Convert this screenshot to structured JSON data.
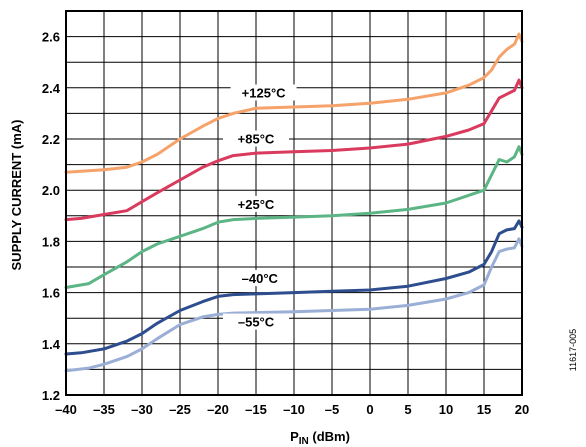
{
  "chart_data": {
    "type": "line",
    "xlabel_main": "P",
    "xlabel_sub": "IN",
    "xlabel_unit": " (dBm)",
    "ylabel": "SUPPLY CURRENT (mA)",
    "xlim": [
      -40,
      20
    ],
    "ylim": [
      1.2,
      2.7
    ],
    "x_ticks": [
      "–40",
      "–35",
      "–30",
      "–25",
      "–20",
      "–15",
      "–10",
      "–5",
      "0",
      "5",
      "10",
      "15",
      "20"
    ],
    "y_ticks": [
      "1.2",
      "1.4",
      "1.6",
      "1.8",
      "2.0",
      "2.2",
      "2.4",
      "2.6"
    ],
    "grid": true,
    "figure_id": "11617-005",
    "series": [
      {
        "name": "+125°C",
        "color": "#f5a36b",
        "label_pos": [
          -14,
          2.37
        ],
        "points": [
          [
            -40,
            2.07
          ],
          [
            -35,
            2.08
          ],
          [
            -32,
            2.09
          ],
          [
            -30,
            2.11
          ],
          [
            -28,
            2.14
          ],
          [
            -25,
            2.2
          ],
          [
            -22,
            2.25
          ],
          [
            -20,
            2.28
          ],
          [
            -18,
            2.3
          ],
          [
            -15,
            2.32
          ],
          [
            -10,
            2.325
          ],
          [
            -5,
            2.33
          ],
          [
            0,
            2.34
          ],
          [
            5,
            2.355
          ],
          [
            10,
            2.38
          ],
          [
            13,
            2.41
          ],
          [
            15,
            2.44
          ],
          [
            16,
            2.47
          ],
          [
            17,
            2.52
          ],
          [
            18,
            2.55
          ],
          [
            19,
            2.57
          ],
          [
            19.6,
            2.61
          ],
          [
            20,
            2.58
          ]
        ]
      },
      {
        "name": "+85°C",
        "color": "#d93a5d",
        "label_pos": [
          -15,
          2.19
        ],
        "points": [
          [
            -40,
            1.885
          ],
          [
            -38,
            1.89
          ],
          [
            -35,
            1.905
          ],
          [
            -32,
            1.92
          ],
          [
            -30,
            1.955
          ],
          [
            -28,
            1.99
          ],
          [
            -25,
            2.04
          ],
          [
            -22,
            2.09
          ],
          [
            -20,
            2.115
          ],
          [
            -18,
            2.135
          ],
          [
            -15,
            2.145
          ],
          [
            -10,
            2.15
          ],
          [
            -5,
            2.155
          ],
          [
            0,
            2.165
          ],
          [
            5,
            2.18
          ],
          [
            10,
            2.21
          ],
          [
            13,
            2.235
          ],
          [
            15,
            2.26
          ],
          [
            16,
            2.31
          ],
          [
            17,
            2.36
          ],
          [
            18,
            2.375
          ],
          [
            19,
            2.39
          ],
          [
            19.6,
            2.43
          ],
          [
            20,
            2.4
          ]
        ]
      },
      {
        "name": "+25°C",
        "color": "#5bb584",
        "label_pos": [
          -15,
          1.935
        ],
        "points": [
          [
            -40,
            1.62
          ],
          [
            -37,
            1.635
          ],
          [
            -35,
            1.67
          ],
          [
            -32,
            1.72
          ],
          [
            -30,
            1.76
          ],
          [
            -28,
            1.79
          ],
          [
            -25,
            1.82
          ],
          [
            -22,
            1.85
          ],
          [
            -20,
            1.875
          ],
          [
            -18,
            1.885
          ],
          [
            -15,
            1.89
          ],
          [
            -10,
            1.895
          ],
          [
            -5,
            1.9
          ],
          [
            0,
            1.91
          ],
          [
            5,
            1.925
          ],
          [
            10,
            1.95
          ],
          [
            13,
            1.98
          ],
          [
            15,
            2.0
          ],
          [
            16,
            2.06
          ],
          [
            17,
            2.12
          ],
          [
            18,
            2.11
          ],
          [
            19,
            2.13
          ],
          [
            19.6,
            2.17
          ],
          [
            20,
            2.14
          ]
        ]
      },
      {
        "name": "–40°C",
        "color": "#2e4d8f",
        "label_pos": [
          -14.5,
          1.645
        ],
        "points": [
          [
            -40,
            1.36
          ],
          [
            -38,
            1.365
          ],
          [
            -35,
            1.38
          ],
          [
            -32,
            1.41
          ],
          [
            -30,
            1.44
          ],
          [
            -28,
            1.48
          ],
          [
            -25,
            1.53
          ],
          [
            -22,
            1.565
          ],
          [
            -20,
            1.585
          ],
          [
            -18,
            1.592
          ],
          [
            -15,
            1.595
          ],
          [
            -10,
            1.6
          ],
          [
            -5,
            1.605
          ],
          [
            0,
            1.61
          ],
          [
            5,
            1.625
          ],
          [
            10,
            1.655
          ],
          [
            13,
            1.68
          ],
          [
            15,
            1.71
          ],
          [
            16,
            1.76
          ],
          [
            17,
            1.83
          ],
          [
            18,
            1.845
          ],
          [
            19,
            1.85
          ],
          [
            19.6,
            1.88
          ],
          [
            20,
            1.855
          ]
        ]
      },
      {
        "name": "–55°C",
        "color": "#9aaed6",
        "label_pos": [
          -15,
          1.475
        ],
        "points": [
          [
            -40,
            1.295
          ],
          [
            -37,
            1.305
          ],
          [
            -35,
            1.32
          ],
          [
            -32,
            1.35
          ],
          [
            -30,
            1.38
          ],
          [
            -28,
            1.42
          ],
          [
            -25,
            1.475
          ],
          [
            -22,
            1.505
          ],
          [
            -20,
            1.515
          ],
          [
            -18,
            1.52
          ],
          [
            -15,
            1.522
          ],
          [
            -10,
            1.525
          ],
          [
            -5,
            1.53
          ],
          [
            0,
            1.535
          ],
          [
            5,
            1.55
          ],
          [
            10,
            1.575
          ],
          [
            13,
            1.6
          ],
          [
            15,
            1.63
          ],
          [
            16,
            1.7
          ],
          [
            17,
            1.76
          ],
          [
            18,
            1.77
          ],
          [
            19,
            1.775
          ],
          [
            19.6,
            1.81
          ],
          [
            20,
            1.78
          ]
        ]
      }
    ]
  }
}
